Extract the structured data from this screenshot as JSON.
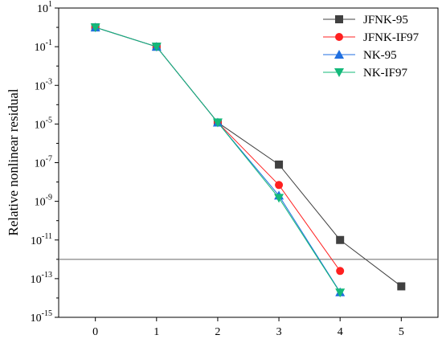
{
  "chart_data": {
    "type": "line",
    "xlabel": "",
    "ylabel": "Relative nonlinear residual",
    "xlim": [
      -0.6,
      5.6
    ],
    "ylim_log10": [
      -15,
      1
    ],
    "yscale": "log",
    "x_ticks": [
      {
        "value": 0,
        "label": "0"
      },
      {
        "value": 1,
        "label": "1"
      },
      {
        "value": 2,
        "label": "2"
      },
      {
        "value": 3,
        "label": "3"
      },
      {
        "value": 4,
        "label": "4"
      },
      {
        "value": 5,
        "label": "5"
      }
    ],
    "y_ticks": [
      {
        "exp": 1,
        "base": "10",
        "power": "1"
      },
      {
        "exp": -1,
        "base": "10",
        "power": "-1"
      },
      {
        "exp": -3,
        "base": "10",
        "power": "-3"
      },
      {
        "exp": -5,
        "base": "10",
        "power": "-5"
      },
      {
        "exp": -7,
        "base": "10",
        "power": "-7"
      },
      {
        "exp": -9,
        "base": "10",
        "power": "-9"
      },
      {
        "exp": -11,
        "base": "10",
        "power": "-11"
      },
      {
        "exp": -13,
        "base": "10",
        "power": "-13"
      },
      {
        "exp": -15,
        "base": "10",
        "power": "-15"
      }
    ],
    "reference_line": {
      "y": 1e-12,
      "color": "#666666"
    },
    "legend_position": "top-right",
    "series": [
      {
        "name": "JFNK-95",
        "color": "#404040",
        "marker": "square",
        "x": [
          0,
          1,
          2,
          3,
          4,
          5
        ],
        "y": [
          1.0,
          0.1,
          1.2e-05,
          8e-08,
          1e-11,
          4e-14
        ]
      },
      {
        "name": "JFNK-IF97",
        "color": "#ff2020",
        "marker": "circle",
        "x": [
          0,
          1,
          2,
          3,
          4
        ],
        "y": [
          1.0,
          0.1,
          1.2e-05,
          7e-09,
          2.5e-13
        ]
      },
      {
        "name": "NK-95",
        "color": "#1f6fe0",
        "marker": "triangle-up",
        "x": [
          0,
          1,
          2,
          3,
          4
        ],
        "y": [
          1.0,
          0.1,
          1.2e-05,
          2e-09,
          2e-14
        ]
      },
      {
        "name": "NK-IF97",
        "color": "#13b97a",
        "marker": "triangle-down",
        "x": [
          0,
          1,
          2,
          3,
          4
        ],
        "y": [
          1.0,
          0.1,
          1.2e-05,
          1.5e-09,
          1.9e-14
        ]
      }
    ]
  }
}
